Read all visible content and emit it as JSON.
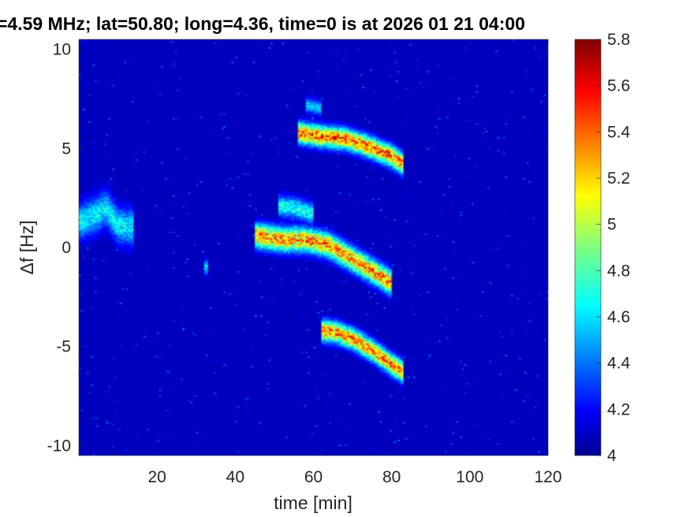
{
  "chart_data": {
    "type": "heatmap",
    "title": "=4.59 MHz;  lat=50.80; long=4.36, time=0 is at 2026 01 21 04:00",
    "xlabel": "time [min]",
    "ylabel": "Δf [Hz]",
    "xlim": [
      0,
      120
    ],
    "ylim": [
      -10.5,
      10.5
    ],
    "x_ticks": [
      "20",
      "40",
      "60",
      "80",
      "100",
      "120"
    ],
    "y_ticks": [
      "10",
      "5",
      "0",
      "-5",
      "-10"
    ],
    "colorbar": {
      "min": 4,
      "max": 5.8,
      "ticks": [
        "5.8",
        "5.6",
        "5.4",
        "5.2",
        "5",
        "4.8",
        "4.6",
        "4.4",
        "4.2",
        "4"
      ],
      "colormap": "jet"
    },
    "background_value": 4.0,
    "traces": [
      {
        "points": [
          [
            56,
            5.8
          ],
          [
            62,
            5.6
          ],
          [
            68,
            5.5
          ],
          [
            74,
            5.1
          ],
          [
            80,
            4.6
          ],
          [
            83,
            4.2
          ]
        ],
        "peak": 5.75,
        "width_hz": 0.35
      },
      {
        "points": [
          [
            45,
            0.6
          ],
          [
            52,
            0.4
          ],
          [
            58,
            0.4
          ],
          [
            64,
            0.1
          ],
          [
            70,
            -0.6
          ],
          [
            76,
            -1.3
          ],
          [
            80,
            -1.8
          ]
        ],
        "peak": 5.65,
        "width_hz": 0.4
      },
      {
        "points": [
          [
            62,
            -4.2
          ],
          [
            66,
            -4.3
          ],
          [
            70,
            -4.6
          ],
          [
            75,
            -5.2
          ],
          [
            80,
            -5.9
          ],
          [
            83,
            -6.3
          ]
        ],
        "peak": 5.7,
        "width_hz": 0.35
      },
      {
        "points": [
          [
            51,
            2.1
          ],
          [
            55,
            2.0
          ],
          [
            60,
            1.7
          ]
        ],
        "peak": 4.85,
        "width_hz": 0.35
      },
      {
        "points": [
          [
            58,
            7.2
          ],
          [
            62,
            7.0
          ]
        ],
        "peak": 4.65,
        "width_hz": 0.25
      },
      {
        "points": [
          [
            0,
            1.3
          ],
          [
            4,
            1.6
          ],
          [
            7,
            2.0
          ],
          [
            10,
            1.1
          ],
          [
            14,
            1.0
          ]
        ],
        "peak": 4.75,
        "width_hz": 0.6
      },
      {
        "points": [
          [
            32,
            -1.0
          ],
          [
            33,
            -1.0
          ]
        ],
        "peak": 4.7,
        "width_hz": 0.25
      }
    ]
  }
}
